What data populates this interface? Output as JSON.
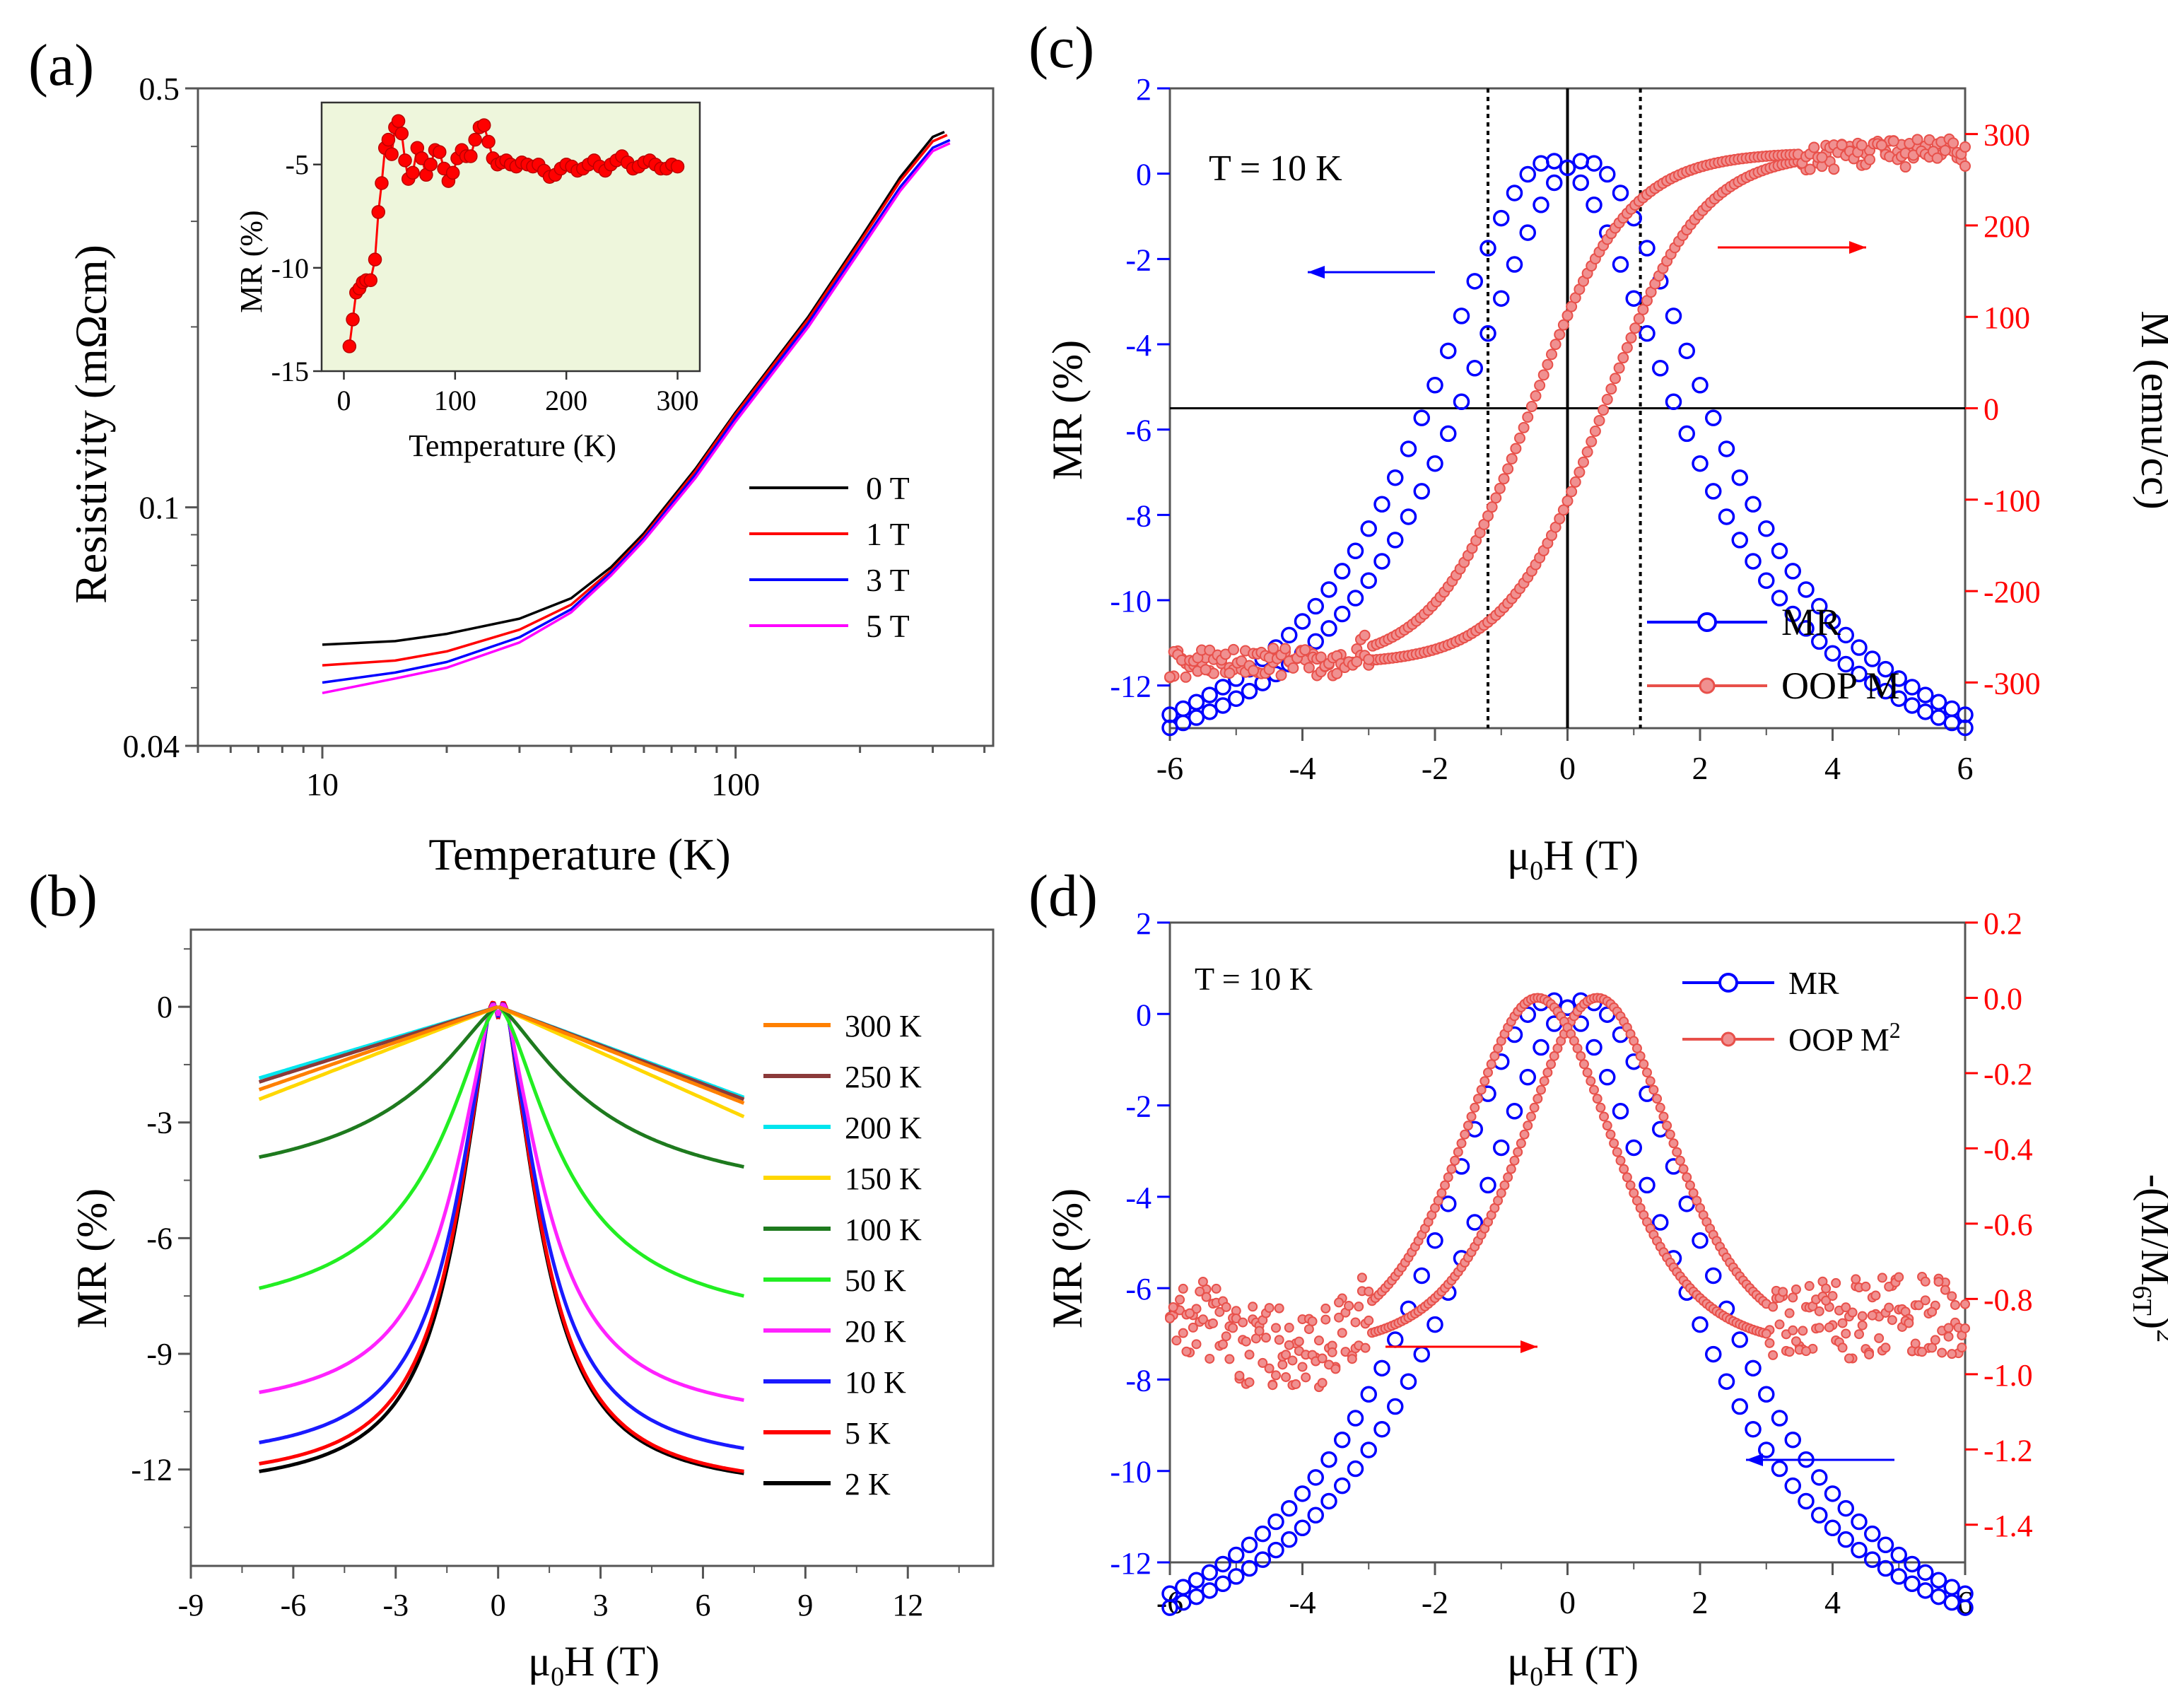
{
  "chart_data": [
    {
      "panel_label": "(a)",
      "type": "line",
      "xscale": "log",
      "yscale": "log",
      "xlabel": "Temperature (K)",
      "ylabel": "Resistivity (mΩcm)",
      "xlim": [
        5,
        420
      ],
      "ylim": [
        0.04,
        0.5
      ],
      "xticks": [
        10,
        100
      ],
      "xtick_labels": [
        "10",
        "100"
      ],
      "yticks": [
        0.04,
        0.1,
        0.5
      ],
      "ytick_labels": [
        "0.04",
        "0.1",
        "0.5"
      ],
      "legend": "bottom-right",
      "series": [
        {
          "name": "0 T",
          "color": "#000000",
          "x": [
            10,
            15,
            20,
            30,
            40,
            50,
            60,
            80,
            100,
            150,
            200,
            250,
            300,
            320
          ],
          "y": [
            0.059,
            0.0598,
            0.0615,
            0.0652,
            0.0705,
            0.0795,
            0.0905,
            0.116,
            0.144,
            0.208,
            0.28,
            0.355,
            0.415,
            0.423
          ]
        },
        {
          "name": "1 T",
          "color": "#ff0000",
          "x": [
            10,
            15,
            20,
            30,
            40,
            50,
            60,
            80,
            100,
            150,
            200,
            250,
            300,
            325
          ],
          "y": [
            0.0545,
            0.0555,
            0.0575,
            0.0625,
            0.0688,
            0.0785,
            0.0895,
            0.115,
            0.143,
            0.206,
            0.277,
            0.35,
            0.408,
            0.418
          ]
        },
        {
          "name": "3 T",
          "color": "#0000ff",
          "x": [
            10,
            15,
            20,
            30,
            40,
            50,
            60,
            80,
            100,
            150,
            200,
            250,
            300,
            330
          ],
          "y": [
            0.051,
            0.053,
            0.0552,
            0.0607,
            0.0676,
            0.0778,
            0.0888,
            0.1135,
            0.141,
            0.203,
            0.272,
            0.342,
            0.398,
            0.41
          ]
        },
        {
          "name": "5 T",
          "color": "#ff00ff",
          "x": [
            10,
            15,
            20,
            30,
            40,
            50,
            60,
            80,
            100,
            150,
            200,
            250,
            300,
            330
          ],
          "y": [
            0.049,
            0.0518,
            0.054,
            0.0595,
            0.0668,
            0.077,
            0.088,
            0.112,
            0.139,
            0.2,
            0.268,
            0.337,
            0.393,
            0.405
          ]
        }
      ],
      "inset": {
        "type": "line+scatter",
        "xlabel": "Temperature (K)",
        "ylabel": "MR (%)",
        "xlim": [
          -20,
          320
        ],
        "ylim": [
          -15,
          -2
        ],
        "xticks": [
          0,
          100,
          200,
          300
        ],
        "xtick_labels": [
          "0",
          "100",
          "200",
          "300"
        ],
        "yticks": [
          -15,
          -10,
          -5
        ],
        "ytick_labels": [
          "-15",
          "-10",
          "-5"
        ],
        "color": "#ff0000",
        "background": "#eef6dc",
        "x": [
          5,
          8,
          11,
          14,
          17,
          20,
          24,
          28,
          31,
          34,
          37,
          40,
          43,
          46,
          49,
          52,
          55,
          58,
          62,
          66,
          70,
          74,
          78,
          82,
          86,
          90,
          94,
          98,
          102,
          106,
          110,
          114,
          118,
          122,
          126,
          130,
          134,
          138,
          142,
          146,
          150,
          155,
          160,
          165,
          170,
          175,
          180,
          185,
          190,
          195,
          200,
          205,
          210,
          215,
          220,
          225,
          230,
          235,
          240,
          245,
          250,
          255,
          260,
          265,
          270,
          275,
          280,
          285,
          290,
          295,
          300
        ],
        "y": [
          -13.8,
          -12.5,
          -11.2,
          -11.0,
          -10.7,
          -10.6,
          -10.6,
          -9.6,
          -7.3,
          -5.9,
          -4.2,
          -3.8,
          -4.5,
          -3.2,
          -2.9,
          -3.5,
          -4.8,
          -5.7,
          -5.4,
          -4.2,
          -4.7,
          -5.5,
          -5.0,
          -4.3,
          -4.4,
          -5.2,
          -5.8,
          -5.4,
          -4.7,
          -4.3,
          -4.6,
          -4.6,
          -3.8,
          -3.2,
          -3.1,
          -3.9,
          -4.7,
          -5.0,
          -4.9,
          -4.8,
          -5.0,
          -5.1,
          -4.9,
          -5.0,
          -5.1,
          -5.0,
          -5.3,
          -5.6,
          -5.5,
          -5.2,
          -5.0,
          -5.1,
          -5.3,
          -5.2,
          -5.0,
          -4.8,
          -5.1,
          -5.3,
          -5.0,
          -4.8,
          -4.6,
          -4.9,
          -5.2,
          -5.1,
          -4.9,
          -4.8,
          -5.0,
          -5.2,
          -5.2,
          -5.0,
          -5.1
        ]
      }
    },
    {
      "panel_label": "(b)",
      "type": "line",
      "xlabel": "μ₀H (T)",
      "ylabel": "MR (%)",
      "xlim": [
        -9,
        14.5
      ],
      "ylim": [
        -14.5,
        2
      ],
      "xticks": [
        -9,
        -6,
        -3,
        0,
        3,
        6,
        9,
        12
      ],
      "xtick_labels": [
        "-9",
        "-6",
        "-3",
        "0",
        "3",
        "6",
        "9",
        "12"
      ],
      "yticks": [
        -12,
        -9,
        -6,
        -3,
        0
      ],
      "ytick_labels": [
        "-12",
        "-9",
        "-6",
        "-3",
        "0"
      ],
      "legend": "right",
      "series": [
        {
          "name": "300 K",
          "color": "#ff8000",
          "end_left": -2.15,
          "end_right": -2.5,
          "width": 1.0,
          "power": 1.0,
          "hump": 0
        },
        {
          "name": "250 K",
          "color": "#8b3a3a",
          "end_left": -1.95,
          "end_right": -2.4,
          "width": 1.0,
          "power": 1.0,
          "hump": 0
        },
        {
          "name": "200 K",
          "color": "#00e5ee",
          "end_left": -1.85,
          "end_right": -2.35,
          "width": 1.0,
          "power": 1.0,
          "hump": 0
        },
        {
          "name": "150 K",
          "color": "#ffd700",
          "end_left": -2.4,
          "end_right": -2.85,
          "width": 1.0,
          "power": 1.0,
          "hump": 0
        },
        {
          "name": "100 K",
          "color": "#1e7a1e",
          "end_left": -3.9,
          "end_right": -4.15,
          "width": 3.0,
          "power": 1.4,
          "hump": 0
        },
        {
          "name": "50 K",
          "color": "#22ee22",
          "end_left": -7.3,
          "end_right": -7.5,
          "width": 2.1,
          "power": 1.6,
          "hump": 0
        },
        {
          "name": "20 K",
          "color": "#ff22ff",
          "end_left": -10.0,
          "end_right": -10.2,
          "width": 1.55,
          "power": 1.8,
          "hump": 0.3
        },
        {
          "name": "10 K",
          "color": "#1a1aff",
          "end_left": -11.3,
          "end_right": -11.45,
          "width": 1.45,
          "power": 1.85,
          "hump": 0.35
        },
        {
          "name": "5 K",
          "color": "#ff0000",
          "end_left": -11.85,
          "end_right": -12.05,
          "width": 1.4,
          "power": 1.9,
          "hump": 0.4
        },
        {
          "name": "2 K",
          "color": "#000000",
          "end_left": -12.05,
          "end_right": -12.1,
          "width": 1.38,
          "power": 1.9,
          "hump": 0.4
        }
      ],
      "field_range": [
        -7,
        7.2
      ]
    },
    {
      "panel_label": "(c)",
      "type": "scatter",
      "annotation": "T = 10 K",
      "xlabel": "μ₀H (T)",
      "ylabel_left": "MR (%)",
      "ylabel_right": "M (emu/cc)",
      "xlim": [
        -6,
        6
      ],
      "ylim_left": [
        -13,
        2
      ],
      "ylim_right": [
        -350,
        350
      ],
      "xticks": [
        -6,
        -4,
        -2,
        0,
        2,
        4,
        6
      ],
      "xtick_labels": [
        "-6",
        "-4",
        "-2",
        "0",
        "2",
        "4",
        "6"
      ],
      "yticks_left": [
        -12,
        -10,
        -8,
        -6,
        -4,
        -2,
        0,
        2
      ],
      "ytick_labels_left": [
        "-12",
        "-10",
        "-8",
        "-6",
        "-4",
        "-2",
        "0",
        "2"
      ],
      "yticks_right": [
        -300,
        -200,
        -100,
        0,
        100,
        200,
        300
      ],
      "ytick_labels_right": [
        "-300",
        "-200",
        "-100",
        "0",
        "100",
        "200",
        "300"
      ],
      "vertical_lines": [
        -1.2,
        0,
        1.1
      ],
      "horizontal_line_right_axis": 0,
      "legend": "bottom-right",
      "series": [
        {
          "name": "MR",
          "axis": "left",
          "color": "#0000ff",
          "marker": "open-circle",
          "peak_shift": 0.25,
          "peak": 0.3,
          "width": 2.0,
          "floor": -10.6
        },
        {
          "name": "OOP M",
          "axis": "right",
          "color": "#e8504a",
          "marker": "filled-circle",
          "saturation": 280,
          "coercive": 1.1,
          "width": 1.1
        }
      ]
    },
    {
      "panel_label": "(d)",
      "type": "scatter",
      "annotation": "T = 10 K",
      "xlabel": "μ₀H (T)",
      "ylabel_left": "MR (%)",
      "ylabel_right": "-(M/M6T)²",
      "xlim": [
        -6,
        6
      ],
      "ylim_left": [
        -12,
        2
      ],
      "ylim_right": [
        -1.5,
        0.2
      ],
      "xticks": [
        -6,
        -4,
        -2,
        0,
        2,
        4,
        6
      ],
      "xtick_labels": [
        "-6",
        "-4",
        "-2",
        "0",
        "2",
        "4",
        "6"
      ],
      "yticks_left": [
        -12,
        -10,
        -8,
        -6,
        -4,
        -2,
        0,
        2
      ],
      "ytick_labels_left": [
        "-12",
        "-10",
        "-8",
        "-6",
        "-4",
        "-2",
        "0",
        "2"
      ],
      "yticks_right": [
        -1.4,
        -1.2,
        -1.0,
        -0.8,
        -0.6,
        -0.4,
        -0.2,
        0.0,
        0.2
      ],
      "ytick_labels_right": [
        "-1.4",
        "-1.2",
        "-1.0",
        "-0.8",
        "-0.6",
        "-0.4",
        "-0.2",
        "0.0",
        "0.2"
      ],
      "legend": "top-right",
      "series": [
        {
          "name": "MR",
          "axis": "left",
          "color": "#0000ff",
          "marker": "open-circle"
        },
        {
          "name": "OOP M²",
          "axis": "right",
          "color": "#e8504a",
          "marker": "filled-circle",
          "plateau": -0.85
        }
      ]
    }
  ],
  "texts": {
    "a_label": "(a)",
    "b_label": "(b)",
    "c_label": "(c)",
    "d_label": "(d)",
    "a_xlabel": "Temperature (K)",
    "a_ylabel": "Resistivity (mΩcm)",
    "a_inset_xlabel": "Temperature (K)",
    "a_inset_ylabel": "MR (%)",
    "b_ylabel": "MR (%)",
    "c_ylabel_left": "MR (%)",
    "c_ylabel_right": "M (emu/cc)",
    "d_ylabel_left": "MR (%)",
    "mu": "μ",
    "zero_sub": "0",
    "h_tesla": "H (T)",
    "c_annot": "T = 10 K",
    "d_annot": "T = 10 K",
    "c_legend_mr": "MR",
    "c_legend_m": "OOP M",
    "d_legend_mr": "MR",
    "d_legend_m": "OOP M",
    "d_legend_m_sup": "2",
    "d_rlabel_pre": "-(M/M",
    "d_rlabel_sub": "6T",
    "d_rlabel_post": ")",
    "d_rlabel_sup": "2"
  }
}
